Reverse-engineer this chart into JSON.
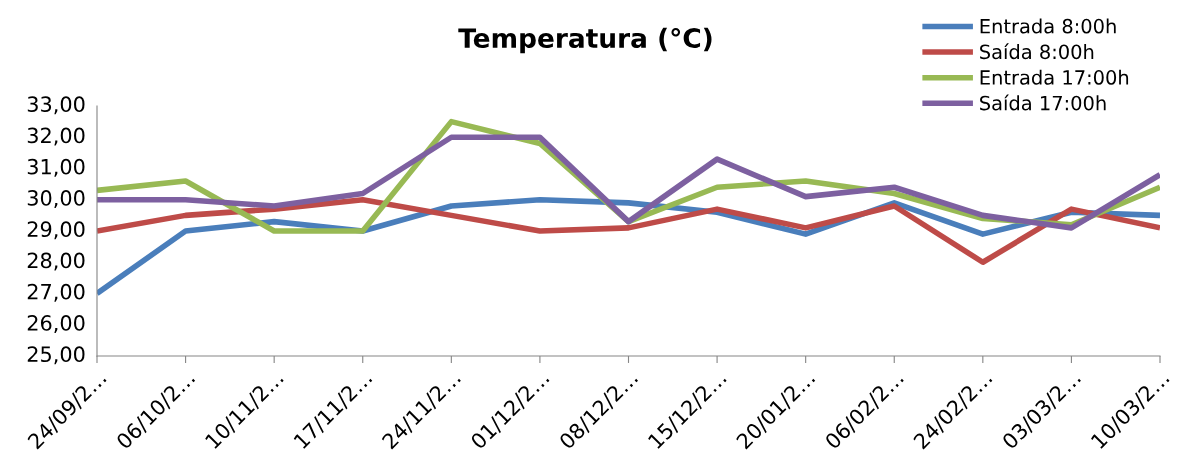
{
  "chart_data": {
    "type": "line",
    "title": "Temperatura (°C)",
    "categories": [
      "24/09/2…",
      "06/10/2…",
      "10/11/2…",
      "17/11/2…",
      "24/11/2…",
      "01/12/2…",
      "08/12/2…",
      "15/12/2…",
      "20/01/2…",
      "06/02/2…",
      "24/02/2…",
      "03/03/2…",
      "10/03/2…"
    ],
    "series": [
      {
        "name": "Entrada 8:00h",
        "color": "#4a7ebb",
        "values": [
          27.0,
          29.0,
          29.3,
          29.0,
          29.8,
          30.0,
          29.9,
          29.6,
          28.9,
          29.9,
          28.9,
          29.6,
          29.5
        ]
      },
      {
        "name": "Saída 8:00h",
        "color": "#be4b48",
        "values": [
          29.0,
          29.5,
          29.7,
          30.0,
          29.5,
          29.0,
          29.1,
          29.7,
          29.1,
          29.8,
          28.0,
          29.7,
          29.1
        ]
      },
      {
        "name": "Entrada 17:00h",
        "color": "#98b954",
        "values": [
          30.3,
          30.6,
          29.0,
          29.0,
          32.5,
          31.8,
          29.3,
          30.4,
          30.6,
          30.2,
          29.4,
          29.2,
          30.4
        ]
      },
      {
        "name": "Saída 17:00h",
        "color": "#7d60a0",
        "values": [
          30.0,
          30.0,
          29.8,
          30.2,
          32.0,
          32.0,
          29.3,
          31.3,
          30.1,
          30.4,
          29.5,
          29.1,
          30.8
        ]
      }
    ],
    "ylim": [
      25,
      33
    ],
    "yticks": [
      {
        "value": 25,
        "label": "25,00"
      },
      {
        "value": 26,
        "label": "26,00"
      },
      {
        "value": 27,
        "label": "27,00"
      },
      {
        "value": 28,
        "label": "28,00"
      },
      {
        "value": 29,
        "label": "29,00"
      },
      {
        "value": 30,
        "label": "30,00"
      },
      {
        "value": 31,
        "label": "31,00"
      },
      {
        "value": 32,
        "label": "32,00"
      },
      {
        "value": 33,
        "label": "33,00"
      }
    ],
    "grid": false,
    "legend": "top right",
    "marker": "none",
    "line_style": "solid"
  }
}
